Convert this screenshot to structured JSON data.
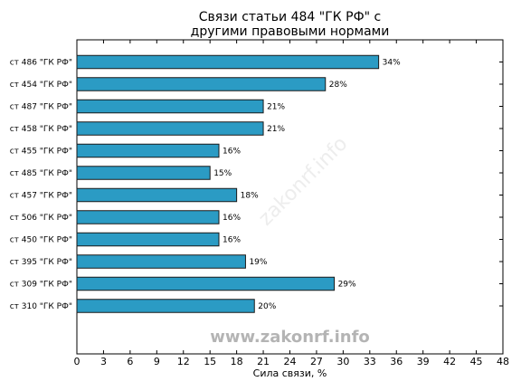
{
  "chart_data": {
    "type": "bar",
    "orientation": "horizontal",
    "title": "Связи статьи 484 \"ГК РФ\" с\nдругими правовыми нормами",
    "xlabel": "Сила связи, %",
    "ylabel": "",
    "categories": [
      "ст 486 \"ГК РФ\"",
      "ст 454 \"ГК РФ\"",
      "ст 487 \"ГК РФ\"",
      "ст 458 \"ГК РФ\"",
      "ст 455 \"ГК РФ\"",
      "ст 485 \"ГК РФ\"",
      "ст 457 \"ГК РФ\"",
      "ст 506 \"ГК РФ\"",
      "ст 450 \"ГК РФ\"",
      "ст 395 \"ГК РФ\"",
      "ст 309 \"ГК РФ\"",
      "ст 310 \"ГК РФ\""
    ],
    "values": [
      34,
      28,
      21,
      21,
      16,
      15,
      18,
      16,
      16,
      19,
      29,
      20
    ],
    "data_labels": [
      "34%",
      "28%",
      "21%",
      "21%",
      "16%",
      "15%",
      "18%",
      "16%",
      "16%",
      "19%",
      "29%",
      "20%"
    ],
    "xlim": [
      0,
      48
    ],
    "xticks": [
      "0",
      "3",
      "6",
      "9",
      "12",
      "15",
      "18",
      "21",
      "24",
      "27",
      "30",
      "33",
      "36",
      "39",
      "42",
      "45",
      "48"
    ],
    "grid": false,
    "bar_color": "#2b9bc4",
    "bar_edge_color": "#1a1a1a"
  },
  "watermark": {
    "main": "www.zakonrf.info",
    "diagonal": "zakonrf.info",
    "color": "#b4b4b4"
  }
}
